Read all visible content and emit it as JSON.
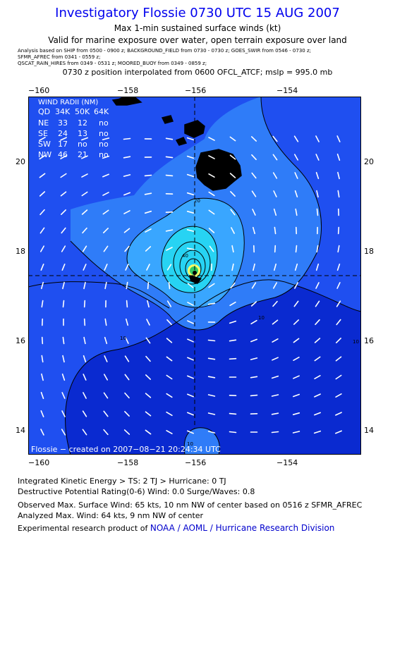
{
  "header": {
    "title": "Investigatory Flossie 0730 UTC 15 AUG 2007",
    "subtitle": "Max 1-min sustained surface winds (kt)",
    "validity": "Valid for marine exposure over water, open terrain exposure over land",
    "analysis_sources": [
      "Analysis based on  SHIP from 0500 - 0900 z;  BACKGROUND_FIELD from 0730 - 0730 z;  GOES_SWIR from 0546 - 0730 z;",
      "SFMR_AFREC from 0341 - 0559 z;",
      "QSCAT_RAIN_HIRES from 0349 - 0531 z;   MOORED_BUOY from 0349 - 0859 z;"
    ],
    "position_note": "0730 z position interpolated from 0600 OFCL_ATCF; mslp = 995.0 mb"
  },
  "map": {
    "lon_ticks": [
      "−160",
      "−158",
      "−156",
      "−154"
    ],
    "lat_ticks": [
      "20",
      "18",
      "16",
      "14"
    ],
    "contour_labels": [
      "20",
      "40",
      "10",
      "10",
      "10",
      "10"
    ],
    "credit": "Flossie − created on 2007−08−21 20:24:34 UTC",
    "wind_radii": {
      "title": "WIND RADII (NM)",
      "header": [
        "QD",
        "34K",
        "50K",
        "64K"
      ],
      "rows": [
        [
          "NE",
          "33",
          "12",
          "no"
        ],
        [
          "SE",
          "24",
          "13",
          "no"
        ],
        [
          "SW",
          "17",
          "no",
          "no"
        ],
        [
          "NW",
          "46",
          "21",
          "no"
        ]
      ]
    },
    "colors": {
      "background_blue": "#1f4ff0",
      "deep_blue": "#0a2ad0",
      "mid_blue": "#2f7cf8",
      "light_blue": "#39a6ff",
      "cyan": "#27d3f3",
      "land": "#000000"
    }
  },
  "footer": {
    "ike": "Integrated Kinetic Energy > TS: 2 TJ   > Hurricane: 0 TJ",
    "dpr": "Destructive Potential Rating(0-6)   Wind: 0.0 Surge/Waves: 0.8",
    "observed": "Observed Max. Surface Wind: 65 kts, 10 nm NW of center based on 0516 z SFMR_AFREC",
    "analyzed": "Analyzed Max. Wind: 64 kts, 9 nm NW of center",
    "credit_prefix": "Experimental research product of",
    "credit_link": "NOAA / AOML / Hurricane Research Division"
  }
}
